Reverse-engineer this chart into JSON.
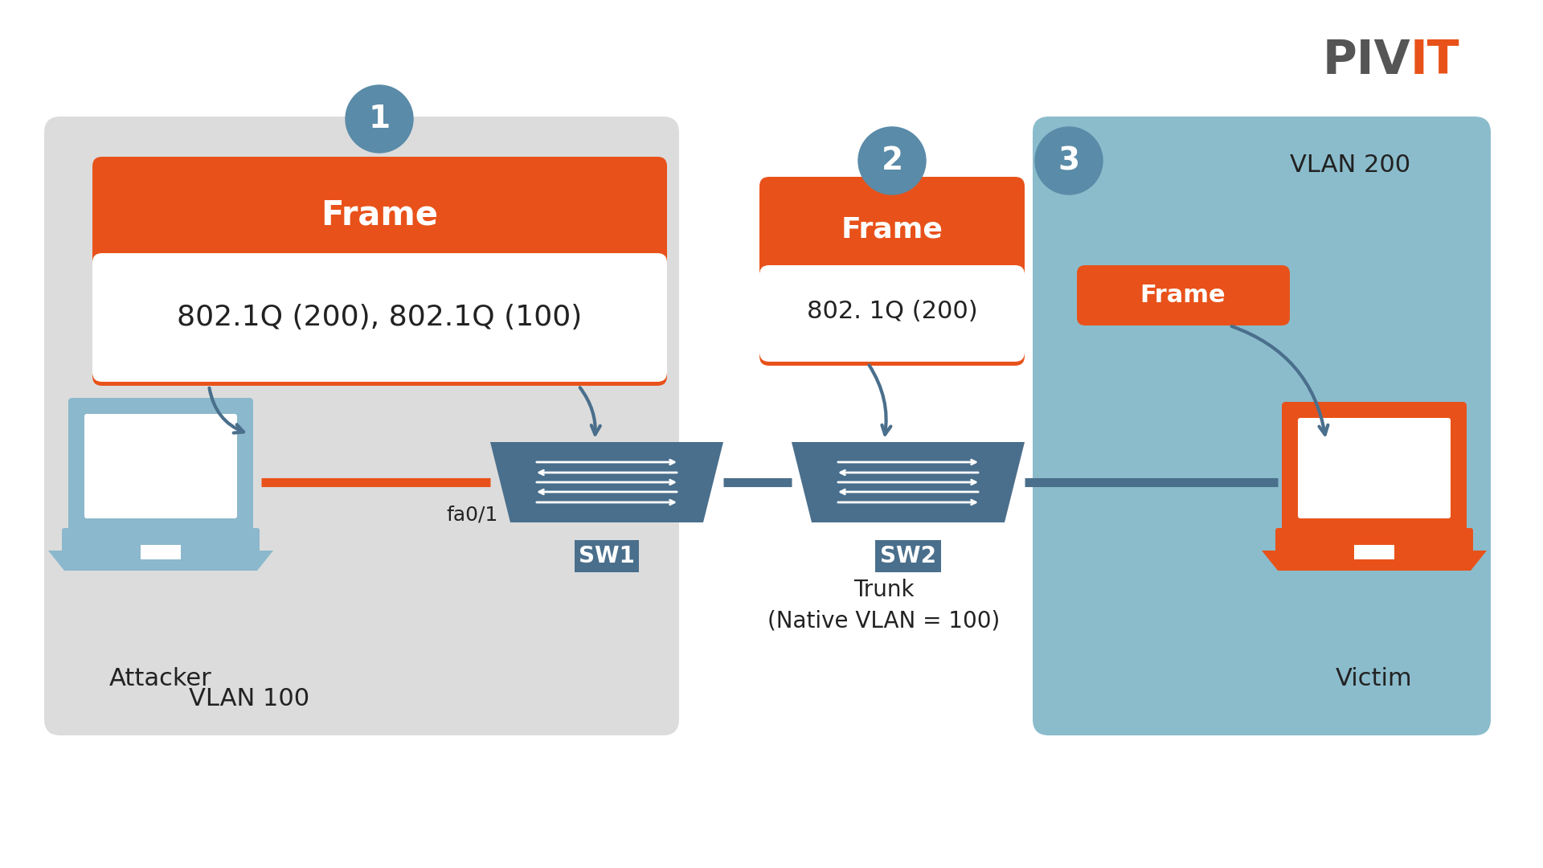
{
  "bg_color": "#ffffff",
  "orange": "#E8521A",
  "dark_blue": "#4A6F8C",
  "light_blue_laptop": "#8BB8CC",
  "light_blue_bg": "#8BBCCC",
  "gray_bg": "#DCDCDC",
  "white": "#ffffff",
  "step_circle_color": "#5A8BA8",
  "arrow_color": "#4A6F8C",
  "text_dark": "#222222",
  "text_white": "#ffffff",
  "logo_gray": "#555555",
  "logo_orange": "#E8521A",
  "zone1_label": "VLAN 100",
  "zone2_label": "VLAN 200",
  "sw1_label": "SW1",
  "sw2_label": "SW2",
  "attacker_label": "Attacker",
  "victim_label": "Victim",
  "trunk_label": "Trunk\n(Native VLAN = 100)",
  "fa_label": "fa0/1",
  "frame_label": "Frame",
  "frame1_content": "802.1Q (200), 802.1Q (100)",
  "frame2_content": "802. 1Q (200)",
  "frame3_label": "Frame",
  "step1": "1",
  "step2": "2",
  "step3": "3"
}
